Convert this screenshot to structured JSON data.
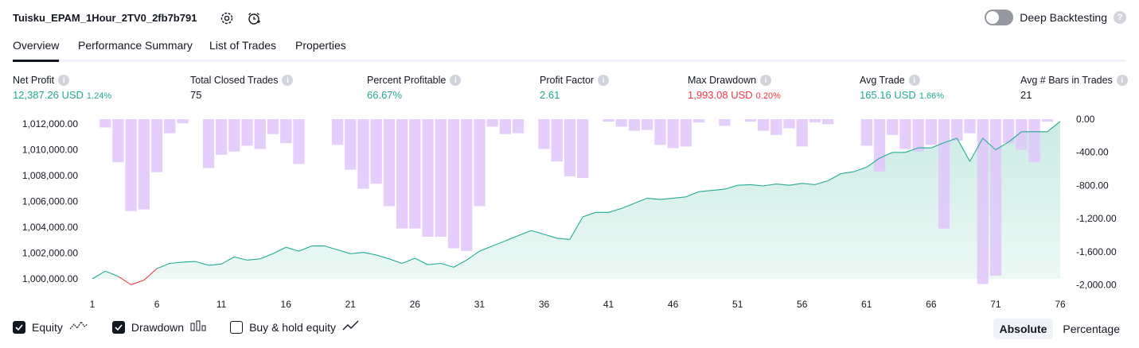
{
  "header": {
    "strategy_name": "Tuisku_EPAM_1Hour_2TV0_2fb7b791",
    "settings_icon": "gear-icon",
    "alert_icon": "alarm-clock-icon",
    "deep_backtesting_label": "Deep Backtesting",
    "deep_backtesting_on": false,
    "help_glyph": "?"
  },
  "tabs": [
    {
      "label": "Overview",
      "active": true
    },
    {
      "label": "Performance Summary",
      "active": false
    },
    {
      "label": "List of Trades",
      "active": false
    },
    {
      "label": "Properties",
      "active": false
    }
  ],
  "metrics": [
    {
      "label": "Net Profit",
      "value": "12,387.26 USD",
      "pct": "1.24%",
      "color": "green"
    },
    {
      "label": "Total Closed Trades",
      "value": "75",
      "pct": "",
      "color": "default"
    },
    {
      "label": "Percent Profitable",
      "value": "66.67%",
      "pct": "",
      "color": "green"
    },
    {
      "label": "Profit Factor",
      "value": "2.61",
      "pct": "",
      "color": "green"
    },
    {
      "label": "Max Drawdown",
      "value": "1,993.08 USD",
      "pct": "0.20%",
      "color": "red"
    },
    {
      "label": "Avg Trade",
      "value": "165.16 USD",
      "pct": "1.66%",
      "color": "green"
    },
    {
      "label": "Avg # Bars in Trades",
      "value": "21",
      "pct": "",
      "color": "default"
    }
  ],
  "info_glyph": "i",
  "legend": {
    "equity_label": "Equity",
    "equity_checked": true,
    "drawdown_label": "Drawdown",
    "drawdown_checked": true,
    "buyhold_label": "Buy & hold equity",
    "buyhold_checked": false
  },
  "modes": [
    {
      "label": "Absolute",
      "active": true
    },
    {
      "label": "Percentage",
      "active": false
    }
  ],
  "colors": {
    "equity_line": "#22ab94",
    "equity_fill": "#c9ebe2",
    "equity_below_line": "#f23645",
    "drawdown_bar": "#e1c6fb",
    "text": "#131722",
    "green": "#22ab94",
    "red": "#f23645"
  },
  "chart_data": {
    "type": "line",
    "x_ticks": [
      "1",
      "6",
      "11",
      "16",
      "21",
      "26",
      "31",
      "36",
      "41",
      "46",
      "51",
      "56",
      "61",
      "66",
      "71",
      "76"
    ],
    "left_axis": {
      "ticks": [
        "1,012,000.00",
        "1,010,000.00",
        "1,008,000.00",
        "1,006,000.00",
        "1,004,000.00",
        "1,002,000.00",
        "1,000,000.00"
      ],
      "ylim": [
        999000,
        1012000
      ]
    },
    "right_axis": {
      "ticks": [
        "0.00",
        "-400.00",
        "-800.00",
        "-1,200.00",
        "-1,600.00",
        "-2,000.00"
      ],
      "ylim": [
        -2000,
        0
      ]
    },
    "series": [
      {
        "name": "Equity",
        "x": [
          1,
          2,
          3,
          4,
          5,
          6,
          7,
          8,
          9,
          10,
          11,
          12,
          13,
          14,
          15,
          16,
          17,
          18,
          19,
          20,
          21,
          22,
          23,
          24,
          25,
          26,
          27,
          28,
          29,
          30,
          31,
          32,
          33,
          34,
          35,
          36,
          37,
          38,
          39,
          40,
          41,
          42,
          43,
          44,
          45,
          46,
          47,
          48,
          49,
          50,
          51,
          52,
          53,
          54,
          55,
          56,
          57,
          58,
          59,
          60,
          61,
          62,
          63,
          64,
          65,
          66,
          67,
          68,
          69,
          70,
          71,
          72,
          73,
          74,
          75,
          76
        ],
        "values": [
          1000000,
          1000600,
          1000200,
          999550,
          999900,
          1000800,
          1001200,
          1001300,
          1001350,
          1001050,
          1001150,
          1001700,
          1001450,
          1001550,
          1001950,
          1002450,
          1002150,
          1002550,
          1002550,
          1002250,
          1001950,
          1002050,
          1001850,
          1001550,
          1001200,
          1001600,
          1001100,
          1001200,
          1000900,
          1001450,
          1002150,
          1002550,
          1002950,
          1003350,
          1003750,
          1003450,
          1003150,
          1003050,
          1004800,
          1005150,
          1005150,
          1005450,
          1005850,
          1006250,
          1006150,
          1006250,
          1006350,
          1006750,
          1006850,
          1006950,
          1007250,
          1007300,
          1007200,
          1007350,
          1007250,
          1007400,
          1007300,
          1007600,
          1008150,
          1008300,
          1008650,
          1009350,
          1009800,
          1009800,
          1010150,
          1010150,
          1010550,
          1010900,
          1009100,
          1010900,
          1010000,
          1010600,
          1011400,
          1011400,
          1011400,
          1012200
        ]
      },
      {
        "name": "Drawdown",
        "x": [
          1,
          2,
          3,
          4,
          5,
          6,
          7,
          8,
          9,
          10,
          11,
          12,
          13,
          14,
          15,
          16,
          17,
          18,
          19,
          20,
          21,
          22,
          23,
          24,
          25,
          26,
          27,
          28,
          29,
          30,
          31,
          32,
          33,
          34,
          35,
          36,
          37,
          38,
          39,
          40,
          41,
          42,
          43,
          44,
          45,
          46,
          47,
          48,
          49,
          50,
          51,
          52,
          53,
          54,
          55,
          56,
          57,
          58,
          59,
          60,
          61,
          62,
          63,
          64,
          65,
          66,
          67,
          68,
          69,
          70,
          71,
          72,
          73,
          74,
          75,
          76
        ],
        "values": [
          0,
          -100,
          -520,
          -1110,
          -1090,
          -640,
          -170,
          -50,
          0,
          -590,
          -430,
          -390,
          -320,
          -360,
          -180,
          -290,
          -540,
          0,
          0,
          -310,
          -610,
          -840,
          -780,
          -1050,
          -1320,
          -1320,
          -1420,
          -1420,
          -1560,
          -1590,
          -1050,
          -90,
          -180,
          -170,
          0,
          -360,
          -510,
          -690,
          -710,
          0,
          -30,
          -90,
          -140,
          -130,
          -310,
          -350,
          -330,
          -40,
          0,
          -80,
          0,
          -30,
          -140,
          -190,
          -110,
          -330,
          -40,
          -60,
          0,
          0,
          -320,
          -630,
          -190,
          -360,
          -390,
          -310,
          -1320,
          -260,
          -170,
          -1990,
          -1890,
          -290,
          -370,
          -520,
          -30,
          0
        ]
      }
    ]
  }
}
